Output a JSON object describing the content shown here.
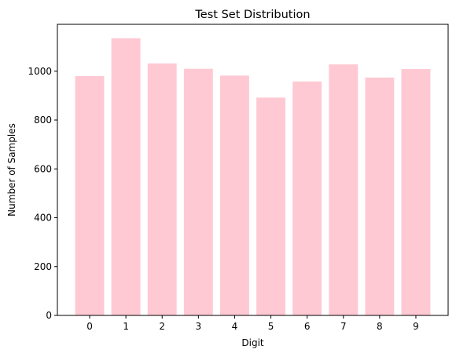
{
  "chart_data": {
    "type": "bar",
    "title": "Test Set Distribution",
    "xlabel": "Digit",
    "ylabel": "Number of Samples",
    "categories": [
      "0",
      "1",
      "2",
      "3",
      "4",
      "5",
      "6",
      "7",
      "8",
      "9"
    ],
    "values": [
      980,
      1135,
      1032,
      1010,
      982,
      892,
      958,
      1028,
      974,
      1009
    ],
    "ylim": [
      0,
      1192
    ],
    "yticks": [
      0,
      200,
      400,
      600,
      800,
      1000
    ],
    "grid": false,
    "bar_color": "#ffc9d4"
  }
}
